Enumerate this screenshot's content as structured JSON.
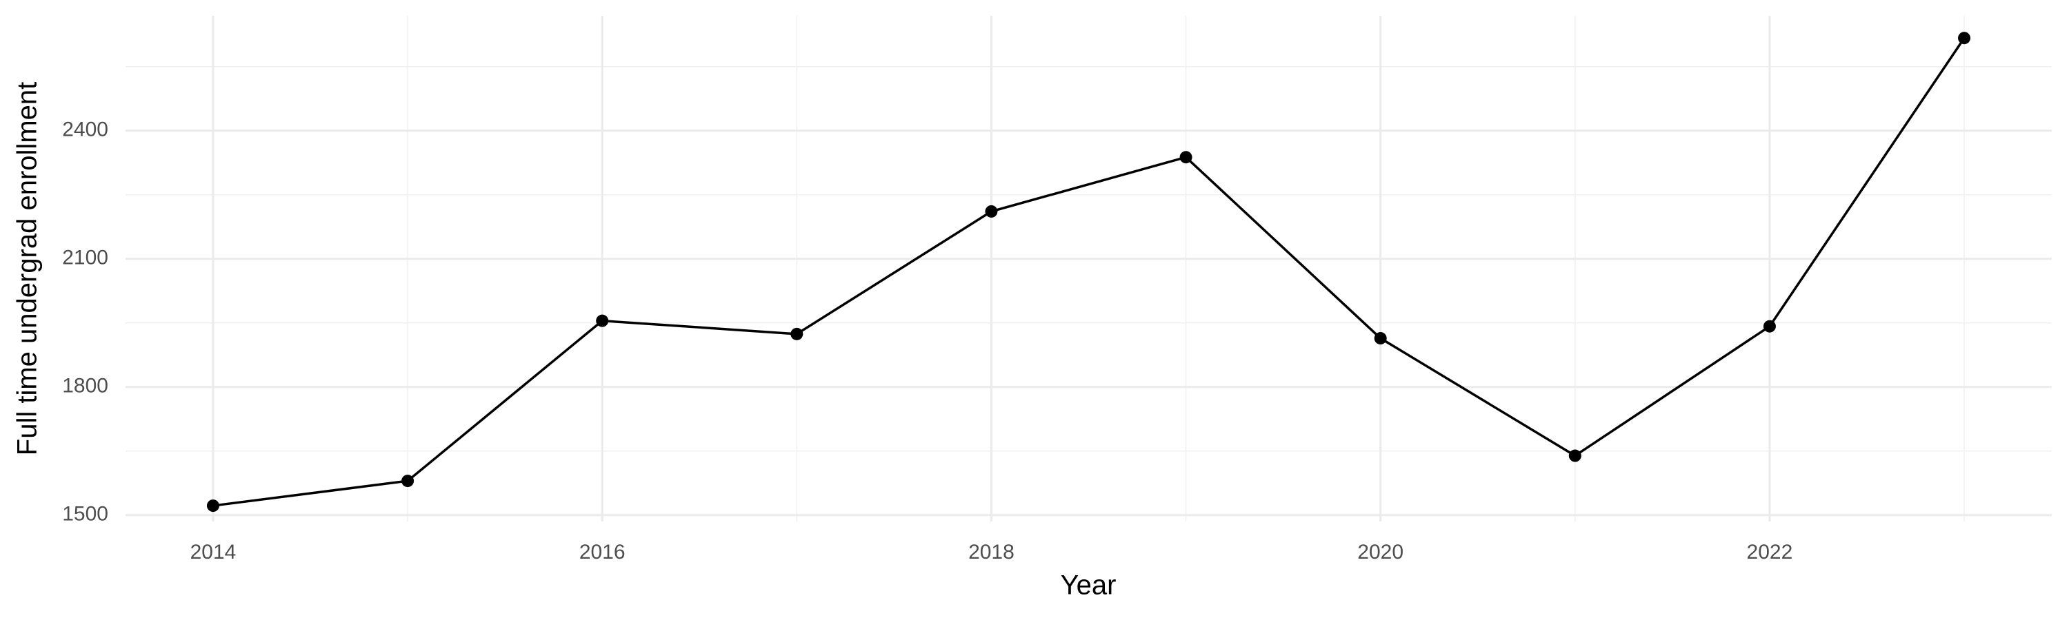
{
  "chart_data": {
    "type": "line",
    "x_label": "Year",
    "y_label": "Full time undergrad enrollment",
    "x": [
      2014,
      2015,
      2016,
      2017,
      2018,
      2019,
      2020,
      2021,
      2022,
      2023
    ],
    "values": [
      1522,
      1580,
      1955,
      1924,
      2211,
      2338,
      1914,
      1639,
      1942,
      2617
    ],
    "color": "#000000",
    "xlim": [
      2013.55,
      2023.45
    ],
    "ylim": [
      1485,
      2669
    ],
    "xticks": [
      2014,
      2016,
      2018,
      2020,
      2022
    ],
    "yticks": [
      1500,
      1800,
      2100,
      2400
    ],
    "minor_xticks": [
      2015,
      2017,
      2019,
      2021,
      2023
    ],
    "minor_yticks": [
      1650,
      1950,
      2250,
      2550
    ],
    "grid": true
  }
}
